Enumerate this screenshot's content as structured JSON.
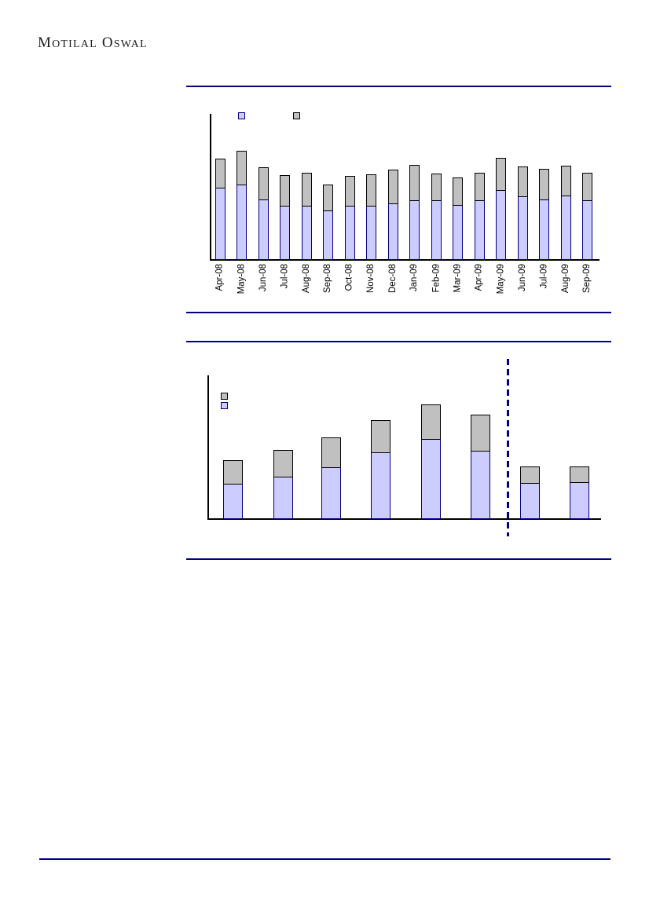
{
  "brand": {
    "name": "Motilal Oswal",
    "display": [
      "M",
      "OTILAL",
      "O",
      "SWAL"
    ],
    "color": "#1c1c1c"
  },
  "rules": {
    "color": "#000080"
  },
  "chart_data": [
    {
      "type": "bar",
      "stacked": true,
      "title": "",
      "categories": [
        "Apr-08",
        "May-08",
        "Jun-08",
        "Jul-08",
        "Aug-08",
        "Sep-08",
        "Oct-08",
        "Nov-08",
        "Dec-08",
        "Jan-09",
        "Feb-09",
        "Mar-09",
        "Apr-09",
        "May-09",
        "Jun-09",
        "Jul-09",
        "Aug-09",
        "Sep-09"
      ],
      "series": [
        {
          "name": "bottom-segment",
          "legend_label_visible": false,
          "fill": "#CCCCFF",
          "border": "#000080",
          "values": [
            91,
            95,
            76,
            68,
            68,
            62,
            68,
            68,
            71,
            75,
            75,
            69,
            75,
            88,
            80,
            76,
            81,
            75
          ]
        },
        {
          "name": "top-segment",
          "legend_label_visible": false,
          "fill": "#C0C0C0",
          "border": "#000000",
          "values": [
            38,
            44,
            42,
            40,
            43,
            34,
            39,
            41,
            44,
            46,
            35,
            36,
            36,
            42,
            39,
            40,
            39,
            36
          ]
        }
      ],
      "value_units": "relative bar height (px); y-axis has no visible tick labels",
      "legend": {
        "position": "top-left",
        "orientation": "horizontal",
        "swatch_order": [
          "#CCCCFF",
          "#C0C0C0"
        ],
        "labels_visible": false
      },
      "axes": {
        "y_ticks_visible": false,
        "x_label_rotation_deg": -90,
        "grid": false
      }
    },
    {
      "type": "bar",
      "stacked": true,
      "title": "",
      "categories": [
        "",
        "",
        "",
        "",
        "",
        "",
        "",
        ""
      ],
      "series": [
        {
          "name": "bottom-segment",
          "legend_label_visible": false,
          "fill": "#CCCCFF",
          "border": "#000080",
          "values": [
            44,
            53,
            65,
            84,
            101,
            86,
            45,
            46
          ]
        },
        {
          "name": "top-segment",
          "legend_label_visible": false,
          "fill": "#C0C0C0",
          "border": "#000000",
          "values": [
            31,
            35,
            39,
            42,
            45,
            47,
            22,
            21
          ]
        }
      ],
      "value_units": "relative bar height (px); axes have no visible tick labels",
      "legend": {
        "position": "top-left",
        "orientation": "vertical",
        "swatch_order": [
          "#C0C0C0",
          "#CCCCFF"
        ],
        "labels_visible": false
      },
      "separator": {
        "type": "dashed-vertical",
        "after_category_index": 5,
        "color": "#000080"
      },
      "axes": {
        "y_ticks_visible": false,
        "x_labels_visible": false,
        "grid": false
      }
    }
  ]
}
